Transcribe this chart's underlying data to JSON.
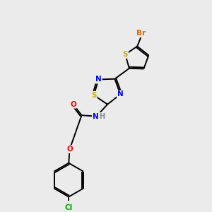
{
  "background_color": "#ebebeb",
  "atom_colors": {
    "Br": "#cc6600",
    "S": "#ccaa00",
    "N": "#0000ff",
    "O": "#ff0000",
    "Cl": "#00aa00",
    "H": "#888899",
    "C": "#000000"
  },
  "lw": 1.4
}
